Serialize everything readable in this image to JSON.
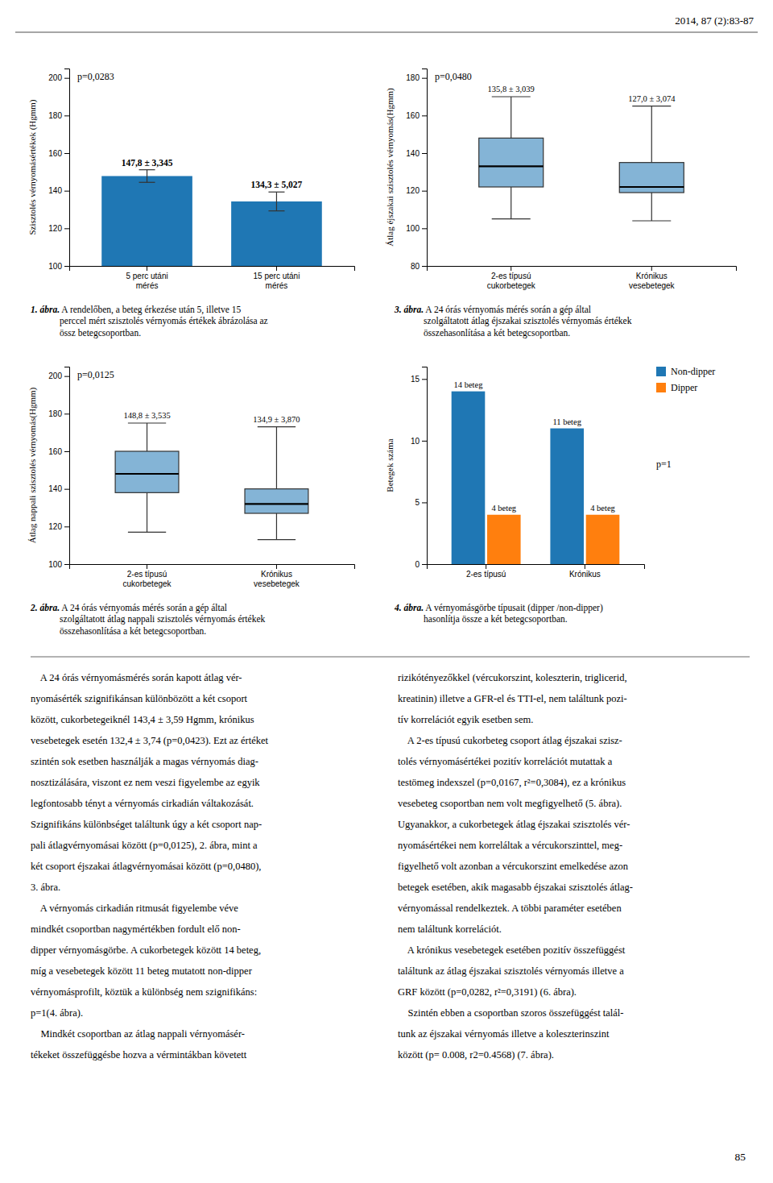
{
  "header": "2014, 87 (2):83-87",
  "chart_data": [
    {
      "type": "bar",
      "title": "1. ábra.",
      "subtitle": " A rendelőben, a beteg érkezése után 5, illetve 15\nperccel mért szisztolés vérnyomás értékek ábrázolása az\nössz betegcsoportban.",
      "ylabel": "Szisztolés vérnyomásértékek (Hgmm)",
      "categories": [
        "5 perc utáni\nmérés",
        "15 perc utáni\nmérés"
      ],
      "values": [
        147.8,
        134.3
      ],
      "errors": [
        3.345,
        5.027
      ],
      "value_labels": [
        "147,8 ± 3,345",
        "134,3 ± 5,027"
      ],
      "annotations": [
        "p=0,0283"
      ],
      "ylim": [
        100,
        205
      ],
      "yticks": [
        100,
        120,
        140,
        160,
        180,
        200
      ]
    },
    {
      "type": "box",
      "title": "3. ábra.",
      "subtitle": " A 24 órás vérnyomás mérés során a gép által\nszolgáltatott átlag éjszakai szisztolés vérnyomás értékek\nösszehasonlítása a két betegcsoportban.",
      "ylabel": "Átlag éjszakai szisztolés vérnyomás(Hgmm)",
      "categories": [
        "2-es típusú\ncukorbetegek",
        "Krónikus\nvesebetegek"
      ],
      "median": [
        133,
        122
      ],
      "q1": [
        122,
        119
      ],
      "q3": [
        148,
        135
      ],
      "whisker_low": [
        105,
        104
      ],
      "whisker_high": [
        170,
        165
      ],
      "mean_labels": [
        "135,8 ± 3,039",
        "127,0 ± 3,074"
      ],
      "annotations": [
        "p=0,0480"
      ],
      "ylim": [
        80,
        185
      ],
      "yticks": [
        80,
        100,
        120,
        140,
        160,
        180
      ]
    },
    {
      "type": "box",
      "title": "2. ábra.",
      "subtitle": " A 24 órás vérnyomás mérés során a gép által\nszolgáltatott átlag nappali szisztolés vérnyomás értékek\nösszehasonlítása a két betegcsoportban.",
      "ylabel": "Átlag nappali szisztolés vérnyomás(Hgmm)",
      "categories": [
        "2-es típusú\ncukorbetegek",
        "Krónikus\nvesebetegek"
      ],
      "median": [
        148,
        132
      ],
      "q1": [
        138,
        127
      ],
      "q3": [
        160,
        140
      ],
      "whisker_low": [
        117,
        113
      ],
      "whisker_high": [
        175,
        173
      ],
      "mean_labels": [
        "148,8 ± 3,535",
        "134,9 ± 3,870"
      ],
      "annotations": [
        "p=0,0125"
      ],
      "ylim": [
        100,
        205
      ],
      "yticks": [
        100,
        120,
        140,
        160,
        180,
        200
      ]
    },
    {
      "type": "bar",
      "title": "4. ábra.",
      "subtitle": " A vérnyomásgörbe típusait (dipper /non-dipper)\nhasonlítja össze a két betegcsoportban.",
      "ylabel": "Betegek száma",
      "categories": [
        "2-es típusú",
        "Krónikus"
      ],
      "series": [
        {
          "name": "Non-dipper",
          "values": [
            14,
            11
          ],
          "value_labels": [
            "14 beteg",
            "11 beteg"
          ]
        },
        {
          "name": "Dipper",
          "values": [
            4,
            4
          ],
          "value_labels": [
            "4 beteg",
            "4 beteg"
          ]
        }
      ],
      "annotations": [
        "p=1"
      ],
      "legend": "right",
      "ylim": [
        0,
        16
      ],
      "yticks": [
        0,
        5,
        10,
        15
      ]
    }
  ],
  "body_left": [
    "    A 24 órás vérnyomásmérés során kapott átlag vér-",
    "nyomásérték szignifikánsan különbözött a két csoport",
    "között, cukorbetegeiknél 143,4 ± 3,59 Hgmm, krónikus",
    "vesebetegek esetén 132,4 ± 3,74 (p=0,0423). Ezt az értéket",
    "szintén sok esetben használják a magas vérnyomás diag-",
    "nosztizálására, viszont ez nem veszi figyelembe az egyik",
    "legfontosabb tényt a vérnyomás cirkadián váltakozását.",
    "Szignifikáns különbséget találtunk úgy a két csoport nap-",
    "pali átlagvérnyomásai között (p=0,0125), 2. ábra, mint a",
    "két csoport éjszakai átlagvérnyomásai között (p=0,0480),",
    "3. ábra.",
    "    A vérnyomás cirkadián ritmusát figyelembe véve",
    "mindkét csoportban nagymértékben fordult elő non-",
    "dipper vérnyomásgörbe. A cukorbetegek között 14 beteg,",
    "míg a vesebetegek között 11 beteg mutatott non-dipper",
    "vérnyomásprofilt, köztük a különbség nem szignifikáns:",
    "p=1(4. ábra).",
    "    Mindkét csoportban az átlag nappali vérnyomásér-",
    "tékeket összefüggésbe hozva a vérmintákban követett"
  ],
  "body_right": [
    "rizikótényezőkkel (vércukorszint, koleszterin, triglicerid,",
    "kreatinin) illetve a GFR-el és TTI-el, nem találtunk pozi-",
    "tív korrelációt egyik esetben sem.",
    "    A 2-es típusú cukorbeteg csoport átlag éjszakai szisz-",
    "tolés vérnyomásértékei pozitív korrelációt mutattak a",
    "testömeg indexszel (p=0,0167, r²=0,3084), ez a krónikus",
    "vesebeteg csoportban nem volt megfigyelhető (5. ábra).",
    "Ugyanakkor, a cukorbetegek átlag éjszakai szisztolés vér-",
    "nyomásértékei nem korreláltak a vércukorszinttel, meg-",
    "figyelhető volt azonban a vércukorszint emelkedése azon",
    "betegek esetében, akik magasabb éjszakai szisztolés átlag-",
    "vérnyomással rendelkeztek. A többi paraméter esetében",
    "nem találtunk korrelációt.",
    "    A krónikus vesebetegek esetében pozitív összefüggést",
    "találtunk az átlag éjszakai szisztolés vérnyomás illetve a",
    "GRF között (p=0,0282, r²=0,3191) (6. ábra).",
    "    Szintén ebben a csoportban szoros összefüggést talál-",
    "tunk az éjszakai vérnyomás illetve a koleszterinszint",
    "között (p= 0.008, r2=0.4568) (7. ábra)."
  ],
  "page_number": "85"
}
